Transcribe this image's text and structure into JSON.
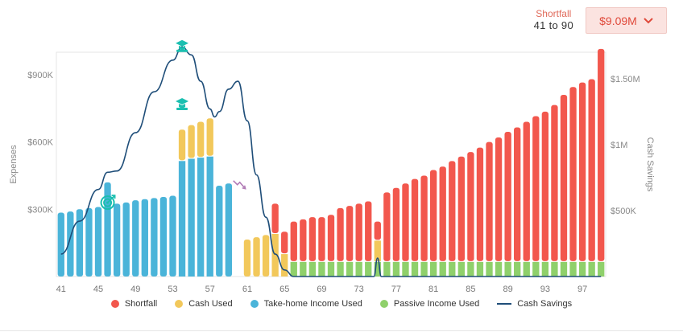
{
  "header": {
    "shortfall_label": "Shortfall",
    "age_range": "41 to 90",
    "shortfall_value": "$9.09M",
    "chevron_icon": "chevron-down-icon"
  },
  "colors": {
    "shortfall": "#f2574d",
    "cash": "#f2c85b",
    "takehome": "#4ab4d9",
    "passive": "#8fd06b",
    "cash_savings": "#1f4e79",
    "milestone_icon": "#1bbfb0"
  },
  "chart_data": {
    "type": "bar",
    "stacked": true,
    "ylabel": "Expenses",
    "y2label": "Cash Savings",
    "ylim": [
      0,
      1000000
    ],
    "y2lim": [
      0,
      1700000
    ],
    "yticks": [
      "$300K",
      "$600K",
      "$900K"
    ],
    "yticks_values": [
      300000,
      600000,
      900000
    ],
    "y2ticks": [
      "$500K",
      "$1M",
      "$1.50M"
    ],
    "y2ticks_values": [
      500000,
      1000000,
      1500000
    ],
    "xticks": [
      "41",
      "45",
      "49",
      "53",
      "57",
      "61",
      "65",
      "69",
      "73",
      "77",
      "81",
      "85",
      "89",
      "93",
      "97"
    ],
    "x": [
      41,
      42,
      43,
      44,
      45,
      46,
      47,
      48,
      49,
      50,
      51,
      52,
      53,
      54,
      55,
      56,
      57,
      58,
      59,
      60,
      61,
      62,
      63,
      64,
      65,
      66,
      67,
      68,
      69,
      70,
      71,
      72,
      73,
      74,
      75,
      76,
      77,
      78,
      79,
      80,
      81,
      82,
      83,
      84,
      85,
      86,
      87,
      88,
      89,
      90,
      91,
      92,
      93,
      94,
      95,
      96,
      97,
      98,
      99
    ],
    "series": [
      {
        "name": "Shortfall",
        "values": [
          0,
          0,
          0,
          0,
          0,
          0,
          0,
          0,
          0,
          0,
          0,
          0,
          0,
          0,
          0,
          0,
          0,
          0,
          0,
          0,
          0,
          0,
          0,
          135000,
          100000,
          180000,
          190000,
          200000,
          200000,
          210000,
          240000,
          250000,
          260000,
          270000,
          85000,
          310000,
          330000,
          350000,
          370000,
          385000,
          410000,
          425000,
          450000,
          470000,
          490000,
          510000,
          535000,
          555000,
          580000,
          600000,
          625000,
          650000,
          670000,
          700000,
          745000,
          780000,
          800000,
          815000,
          950000
        ]
      },
      {
        "name": "Cash Used",
        "values": [
          0,
          0,
          0,
          0,
          0,
          0,
          0,
          0,
          0,
          0,
          0,
          0,
          0,
          140000,
          150000,
          160000,
          170000,
          0,
          0,
          0,
          165000,
          175000,
          185000,
          190000,
          100000,
          0,
          0,
          0,
          0,
          0,
          0,
          0,
          0,
          0,
          95000,
          0,
          0,
          0,
          0,
          0,
          0,
          0,
          0,
          0,
          0,
          0,
          0,
          0,
          0,
          0,
          0,
          0,
          0,
          0,
          0,
          0,
          0,
          0,
          0
        ]
      },
      {
        "name": "Take-home Income Used",
        "values": [
          285000,
          290000,
          300000,
          305000,
          310000,
          420000,
          325000,
          330000,
          340000,
          345000,
          350000,
          355000,
          360000,
          515000,
          525000,
          530000,
          535000,
          405000,
          415000,
          0,
          0,
          0,
          0,
          0,
          0,
          0,
          0,
          0,
          0,
          0,
          0,
          0,
          0,
          0,
          0,
          0,
          0,
          0,
          0,
          0,
          0,
          0,
          0,
          0,
          0,
          0,
          0,
          0,
          0,
          0,
          0,
          0,
          0,
          0,
          0,
          0,
          0,
          0,
          0
        ]
      },
      {
        "name": "Passive Income Used",
        "values": [
          0,
          0,
          0,
          0,
          0,
          0,
          0,
          0,
          0,
          0,
          0,
          0,
          0,
          0,
          0,
          0,
          0,
          0,
          0,
          0,
          0,
          0,
          0,
          0,
          0,
          65000,
          65000,
          65000,
          65000,
          65000,
          65000,
          65000,
          65000,
          65000,
          65000,
          65000,
          65000,
          65000,
          65000,
          65000,
          65000,
          65000,
          65000,
          65000,
          65000,
          65000,
          65000,
          65000,
          65000,
          65000,
          65000,
          65000,
          65000,
          65000,
          65000,
          65000,
          65000,
          65000,
          65000
        ]
      }
    ],
    "line": {
      "name": "Cash Savings",
      "x": [
        41,
        43,
        45,
        46,
        47,
        49,
        51,
        53,
        54,
        55,
        56,
        57,
        57.5,
        58,
        59,
        60,
        61,
        62,
        63,
        64,
        65,
        66,
        67,
        68,
        70,
        72,
        74,
        74.6,
        75,
        75.4,
        76,
        78,
        99
      ],
      "values": [
        170000,
        420000,
        660000,
        790000,
        800000,
        1090000,
        1400000,
        1640000,
        1740000,
        1680000,
        1480000,
        1270000,
        1210000,
        1250000,
        1420000,
        1480000,
        1180000,
        770000,
        450000,
        170000,
        50000,
        0,
        0,
        0,
        0,
        0,
        0,
        0,
        140000,
        0,
        0,
        0,
        0
      ]
    },
    "legend": [
      "Shortfall",
      "Cash Used",
      "Take-home Income Used",
      "Passive Income Used",
      "Cash Savings"
    ],
    "legend_position": "bottom",
    "grid": false,
    "markers": [
      {
        "name": "target-icon",
        "x": 46,
        "y": 560000,
        "color": "#1bbfb0"
      },
      {
        "name": "graduation-cap-icon",
        "x": 54,
        "y": 1750000,
        "color": "#1bbfb0"
      },
      {
        "name": "graduation-cap-icon",
        "x": 54,
        "y": 1310000,
        "color": "#1bbfb0"
      },
      {
        "name": "downtrend-icon",
        "x": 60.2,
        "y": 690000,
        "color": "#b07ab5"
      }
    ]
  }
}
